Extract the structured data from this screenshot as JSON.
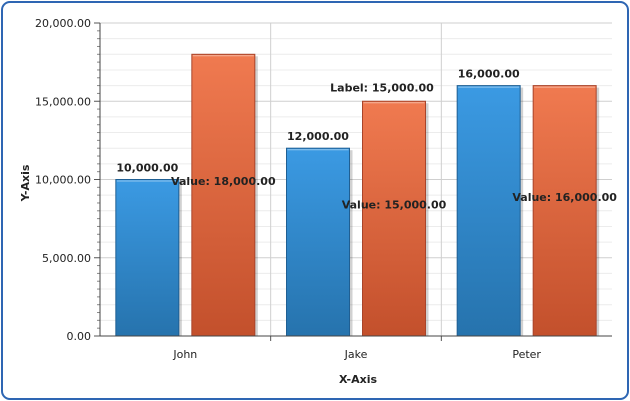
{
  "chart_data": {
    "type": "bar",
    "title": "",
    "xlabel": "X-Axis",
    "ylabel": "Y-Axis",
    "categories": [
      "John",
      "Jake",
      "Peter"
    ],
    "ylim": [
      0,
      20000
    ],
    "yticks": [
      "0.00",
      "5,000.00",
      "10,000.00",
      "15,000.00",
      "20,000.00"
    ],
    "grid": true,
    "series": [
      {
        "values": [
          10000,
          12000,
          16000
        ],
        "color": "#2f8ad3",
        "labels": [
          "10,000.00",
          "12,000.00",
          "16,000.00"
        ]
      },
      {
        "values": [
          18000,
          15000,
          16000
        ],
        "color": "#e8643a",
        "labels": [
          "Value: 18,000.00",
          "Value: 15,000.00",
          "Value: 16,000.00"
        ]
      }
    ],
    "annotations": [
      {
        "text": "Label: 15,000.00",
        "category": "Jake",
        "series": 1
      }
    ]
  }
}
